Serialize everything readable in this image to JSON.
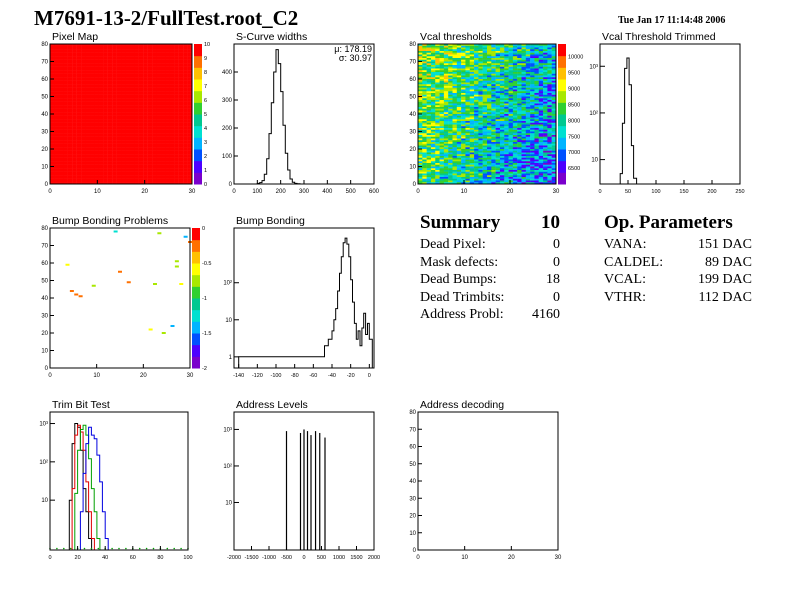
{
  "header": {
    "title": "M7691-13-2/FullTest.root_C2",
    "timestamp": "Tue Jan 17 11:14:48 2006"
  },
  "summary": {
    "title": "Summary",
    "count": "10",
    "rows": [
      {
        "label": "Dead Pixel:",
        "value": "0"
      },
      {
        "label": "Mask defects:",
        "value": "0"
      },
      {
        "label": "Dead Bumps:",
        "value": "18"
      },
      {
        "label": "Dead Trimbits:",
        "value": "0"
      },
      {
        "label": "Address Probl:",
        "value": "4160"
      }
    ]
  },
  "parameters": {
    "title": "Op. Parameters",
    "rows": [
      {
        "label": "VANA:",
        "value": "151 DAC"
      },
      {
        "label": "CALDEL:",
        "value": "89 DAC"
      },
      {
        "label": "VCAL:",
        "value": "199 DAC"
      },
      {
        "label": "VTHR:",
        "value": "112 DAC"
      }
    ]
  },
  "colors": {
    "frame": "#000000",
    "histogram_line": "#000000",
    "trim_series": [
      "#000000",
      "#e00000",
      "#00a000",
      "#0000e0"
    ],
    "palette": [
      "#7a00cc",
      "#4c00ff",
      "#0050ff",
      "#00b4ff",
      "#00e0d0",
      "#00c890",
      "#30d030",
      "#a8e800",
      "#ffff00",
      "#ffc000",
      "#ff7000",
      "#ff0000"
    ]
  },
  "chart_data": [
    {
      "type": "heatmap",
      "title": "Pixel Map",
      "xlim": [
        0,
        32
      ],
      "ylim": [
        0,
        80
      ],
      "xticks": [
        "0",
        "10",
        "20",
        "30"
      ],
      "yticks": [
        "0",
        "10",
        "20",
        "30",
        "40",
        "50",
        "60",
        "70",
        "80"
      ],
      "zlim": [
        0,
        10
      ],
      "zticks": [
        "0",
        "1",
        "2",
        "3",
        "4",
        "5",
        "6",
        "7",
        "8",
        "9",
        "10"
      ],
      "fill_value": 10
    },
    {
      "type": "line",
      "title": "S-Curve widths",
      "xlim": [
        0,
        600
      ],
      "ylim": [
        0,
        500
      ],
      "xticks": [
        "0",
        "100",
        "200",
        "300",
        "400",
        "500",
        "600"
      ],
      "yticks": [
        "0",
        "100",
        "200",
        "300",
        "400"
      ],
      "stats": [
        {
          "label": "μ",
          "value": "178.19"
        },
        {
          "label": "σ",
          "value": "30.97"
        }
      ],
      "x": [
        100,
        110,
        120,
        130,
        140,
        150,
        160,
        170,
        180,
        190,
        200,
        210,
        220,
        230,
        240,
        250,
        260,
        270
      ],
      "values": [
        2,
        5,
        12,
        35,
        90,
        180,
        290,
        400,
        480,
        430,
        330,
        210,
        110,
        50,
        18,
        6,
        2,
        1
      ]
    },
    {
      "type": "heatmap",
      "title": "Vcal thresholds",
      "xlim": [
        0,
        32
      ],
      "ylim": [
        0,
        80
      ],
      "xticks": [
        "0",
        "10",
        "20",
        "30"
      ],
      "yticks": [
        "0",
        "10",
        "20",
        "30",
        "40",
        "50",
        "60",
        "70",
        "80"
      ],
      "zlim": [
        6000,
        10400
      ],
      "zticks": [
        "6500",
        "7000",
        "7500",
        "8000",
        "8500",
        "9000",
        "9500",
        "10000"
      ]
    },
    {
      "type": "line",
      "title": "Vcal Threshold Trimmed",
      "log_y": true,
      "xlim": [
        0,
        250
      ],
      "ylim": [
        3,
        3000
      ],
      "xticks": [
        "0",
        "50",
        "100",
        "150",
        "200",
        "250"
      ],
      "yticks": [
        "10",
        "10²",
        "10³"
      ],
      "x": [
        36,
        40,
        44,
        48,
        52,
        56,
        60
      ],
      "values": [
        5,
        60,
        900,
        1500,
        400,
        20,
        4
      ]
    },
    {
      "type": "scatter",
      "title": "Bump Bonding Problems",
      "xlim": [
        0,
        32
      ],
      "ylim": [
        0,
        80
      ],
      "xticks": [
        "0",
        "10",
        "20",
        "30"
      ],
      "yticks": [
        "0",
        "10",
        "20",
        "30",
        "40",
        "50",
        "60",
        "70",
        "80"
      ],
      "zlim": [
        -2,
        0
      ],
      "zticks": [
        "0",
        "-0.5",
        "-1",
        "-1.5",
        "-2"
      ],
      "points": [
        {
          "x": 6,
          "y": 42,
          "z": -0.2
        },
        {
          "x": 5,
          "y": 44,
          "z": -0.2
        },
        {
          "x": 7,
          "y": 41,
          "z": -0.25
        },
        {
          "x": 4,
          "y": 59,
          "z": -0.65
        },
        {
          "x": 16,
          "y": 55,
          "z": -0.2
        },
        {
          "x": 18,
          "y": 49,
          "z": -0.25
        },
        {
          "x": 10,
          "y": 47,
          "z": -0.7
        },
        {
          "x": 23,
          "y": 22,
          "z": -0.6
        },
        {
          "x": 15,
          "y": 78,
          "z": -1.3
        },
        {
          "x": 25,
          "y": 77,
          "z": -0.75
        },
        {
          "x": 31,
          "y": 75,
          "z": -1.4
        },
        {
          "x": 29,
          "y": 61,
          "z": -0.8
        },
        {
          "x": 29,
          "y": 58,
          "z": -0.7
        },
        {
          "x": 28,
          "y": 24,
          "z": -1.4
        },
        {
          "x": 32,
          "y": 72,
          "z": -0.2
        },
        {
          "x": 30,
          "y": 48,
          "z": -0.6
        },
        {
          "x": 24,
          "y": 48,
          "z": -0.7
        },
        {
          "x": 26,
          "y": 20,
          "z": -0.7
        }
      ]
    },
    {
      "type": "line",
      "title": "Bump Bonding",
      "log_y": true,
      "xlim": [
        -145,
        5
      ],
      "ylim": [
        0.5,
        3000
      ],
      "xticks": [
        "-140",
        "-120",
        "-100",
        "-80",
        "-60",
        "-40",
        "-20",
        "0"
      ],
      "yticks": [
        "1",
        "10",
        "10²"
      ],
      "x": [
        -140,
        -136,
        -60,
        -48,
        -44,
        -40,
        -38,
        -36,
        -34,
        -32,
        -30,
        -28,
        -26,
        -24,
        -22,
        -20,
        -18,
        -16,
        -14,
        -12,
        -10,
        -8,
        -6,
        -4,
        -2,
        0
      ],
      "values": [
        1,
        1,
        1,
        2,
        3,
        5,
        10,
        20,
        60,
        180,
        500,
        1200,
        1600,
        1100,
        500,
        120,
        30,
        8,
        3,
        5,
        2,
        6,
        15,
        4,
        8,
        3
      ]
    },
    {
      "type": "line",
      "title": "Trim Bit Test",
      "log_y": true,
      "xlim": [
        0,
        100
      ],
      "ylim": [
        0.5,
        2000
      ],
      "xticks": [
        "0",
        "20",
        "40",
        "60",
        "80",
        "100"
      ],
      "yticks": [
        "10",
        "10²",
        "10³"
      ],
      "series": [
        {
          "x": [
            14,
            16,
            18,
            20,
            22,
            24,
            26,
            28
          ],
          "values": [
            10,
            300,
            1000,
            800,
            200,
            20,
            5,
            1
          ]
        },
        {
          "x": [
            16,
            18,
            20,
            22,
            24,
            26,
            28,
            30
          ],
          "values": [
            20,
            500,
            900,
            600,
            200,
            30,
            5,
            1
          ]
        },
        {
          "x": [
            18,
            20,
            22,
            24,
            26,
            28,
            30,
            32,
            34
          ],
          "values": [
            15,
            200,
            700,
            900,
            500,
            120,
            20,
            5,
            1
          ]
        },
        {
          "x": [
            22,
            24,
            26,
            28,
            30,
            32,
            34,
            36,
            38,
            40
          ],
          "values": [
            5,
            50,
            300,
            800,
            500,
            400,
            150,
            30,
            5,
            1
          ]
        }
      ]
    },
    {
      "type": "line",
      "title": "Address Levels",
      "log_y": true,
      "xlim": [
        -2000,
        2000
      ],
      "ylim": [
        0.5,
        3000
      ],
      "xticks": [
        "-2000",
        "-1500",
        "-1000",
        "-500",
        "0",
        "500",
        "1000",
        "1500",
        "2000"
      ],
      "yticks": [
        "10",
        "10²",
        "10³"
      ],
      "x": [
        -500,
        -100,
        0,
        100,
        200,
        330,
        450,
        600
      ],
      "values": [
        900,
        800,
        1000,
        900,
        700,
        900,
        800,
        600
      ]
    },
    {
      "type": "heatmap",
      "title": "Address decoding",
      "xlim": [
        0,
        32
      ],
      "ylim": [
        0,
        80
      ],
      "xticks": [
        "0",
        "10",
        "20",
        "30"
      ],
      "yticks": [
        "0",
        "10",
        "20",
        "30",
        "40",
        "50",
        "60",
        "70",
        "80"
      ]
    }
  ]
}
